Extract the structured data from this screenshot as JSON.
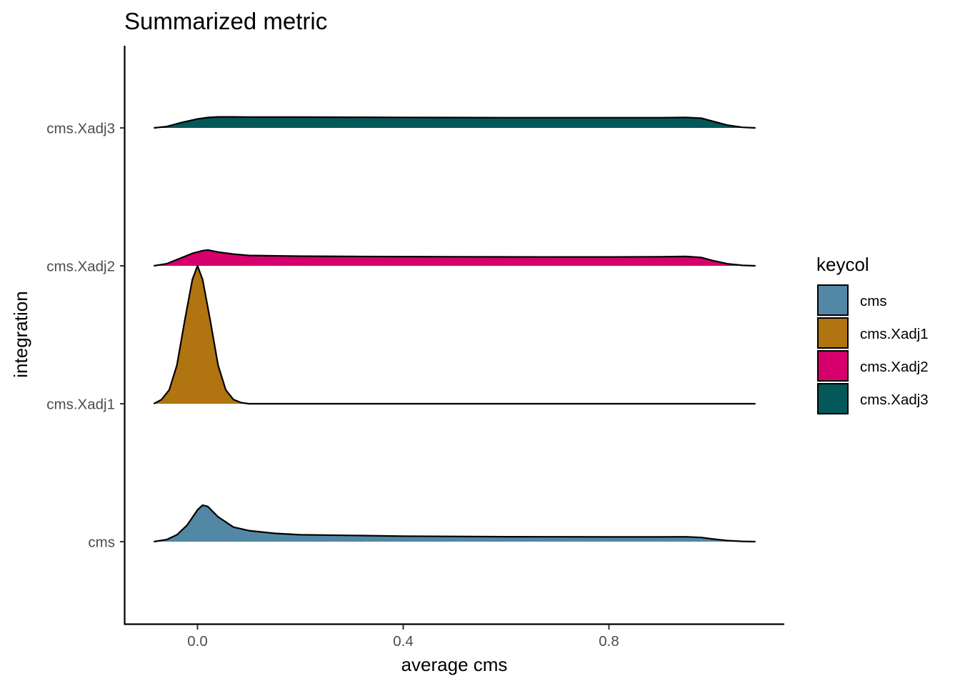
{
  "chart_data": {
    "type": "ridgeline",
    "title": "Summarized metric",
    "xlabel": "average cms",
    "ylabel": "integration",
    "xlim": [
      -0.14,
      1.14
    ],
    "x_ticks": [
      "0.0",
      "0.4",
      "0.8"
    ],
    "x_tick_values": [
      0.0,
      0.4,
      0.8
    ],
    "categories": [
      "cms",
      "cms.Xadj1",
      "cms.Xadj2",
      "cms.Xadj3"
    ],
    "grid": false,
    "legend": {
      "title": "keycol",
      "placement": "right",
      "entries": [
        "cms",
        "cms.Xadj1",
        "cms.Xadj2",
        "cms.Xadj3"
      ]
    },
    "series": [
      {
        "name": "cms",
        "color": "#5288a6",
        "x": [
          -0.085,
          -0.06,
          -0.04,
          -0.02,
          0.0,
          0.01,
          0.02,
          0.04,
          0.07,
          0.1,
          0.15,
          0.2,
          0.3,
          0.4,
          0.5,
          0.6,
          0.7,
          0.8,
          0.9,
          0.95,
          0.98,
          1.0,
          1.03,
          1.06,
          1.085
        ],
        "density": [
          0.0,
          0.015,
          0.05,
          0.12,
          0.23,
          0.265,
          0.255,
          0.18,
          0.105,
          0.08,
          0.06,
          0.05,
          0.045,
          0.04,
          0.038,
          0.036,
          0.035,
          0.034,
          0.034,
          0.035,
          0.03,
          0.02,
          0.008,
          0.002,
          0.0
        ]
      },
      {
        "name": "cms.Xadj1",
        "color": "#b07410",
        "x": [
          -0.085,
          -0.07,
          -0.055,
          -0.04,
          -0.025,
          -0.01,
          0.0,
          0.01,
          0.025,
          0.04,
          0.055,
          0.07,
          0.085,
          0.1,
          0.2,
          0.5,
          1.085
        ],
        "density": [
          0.0,
          0.03,
          0.1,
          0.28,
          0.6,
          0.9,
          1.0,
          0.9,
          0.6,
          0.28,
          0.1,
          0.03,
          0.008,
          0.0,
          0.0,
          0.0,
          0.0
        ]
      },
      {
        "name": "cms.Xadj2",
        "color": "#d6006d",
        "x": [
          -0.085,
          -0.06,
          -0.03,
          -0.01,
          0.01,
          0.02,
          0.04,
          0.07,
          0.1,
          0.2,
          0.3,
          0.4,
          0.5,
          0.6,
          0.7,
          0.8,
          0.9,
          0.95,
          0.98,
          1.0,
          1.03,
          1.06,
          1.085
        ],
        "density": [
          0.0,
          0.015,
          0.06,
          0.09,
          0.11,
          0.115,
          0.1,
          0.085,
          0.075,
          0.07,
          0.068,
          0.067,
          0.066,
          0.065,
          0.064,
          0.064,
          0.066,
          0.068,
          0.06,
          0.04,
          0.015,
          0.003,
          0.0
        ]
      },
      {
        "name": "cms.Xadj3",
        "color": "#04585a",
        "x": [
          -0.085,
          -0.06,
          -0.03,
          0.0,
          0.02,
          0.04,
          0.07,
          0.1,
          0.2,
          0.3,
          0.4,
          0.5,
          0.6,
          0.7,
          0.8,
          0.9,
          0.95,
          0.98,
          1.0,
          1.03,
          1.06,
          1.085
        ],
        "density": [
          0.0,
          0.01,
          0.04,
          0.065,
          0.075,
          0.08,
          0.08,
          0.079,
          0.078,
          0.077,
          0.076,
          0.075,
          0.074,
          0.074,
          0.074,
          0.074,
          0.076,
          0.07,
          0.05,
          0.02,
          0.004,
          0.0
        ]
      }
    ]
  }
}
